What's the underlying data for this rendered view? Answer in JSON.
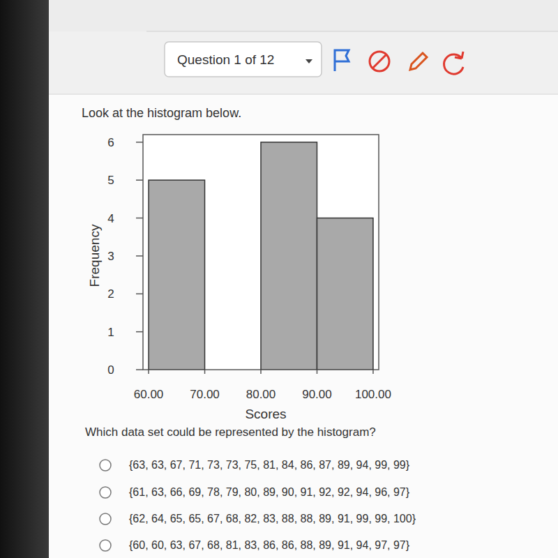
{
  "chart_data": {
    "type": "histogram",
    "bins": [
      60,
      70,
      80,
      90,
      100
    ],
    "values": [
      5,
      0,
      6,
      4
    ],
    "color": "#a9a9a9",
    "x_label": "Scores",
    "y_label": "Frequency",
    "xlim": [
      59,
      101
    ],
    "ylim": [
      0,
      6.2
    ],
    "xticks": [
      {
        "value": 60,
        "label": "60.00"
      },
      {
        "value": 70,
        "label": "70.00"
      },
      {
        "value": 80,
        "label": "80.00"
      },
      {
        "value": 90,
        "label": "90.00"
      },
      {
        "value": 100,
        "label": "100.00"
      }
    ],
    "yticks": [
      0,
      1,
      2,
      3,
      4,
      5,
      6
    ],
    "grid": false
  },
  "page": {
    "question_nav": "Question 1 of 12",
    "prompt": "Look at the histogram below.",
    "question": "Which data set could be represented by the histogram?",
    "options": [
      "{63, 63, 67, 71, 73, 73, 75, 81, 84, 86, 87, 89, 94, 99, 99}",
      "{61, 63, 66, 69, 78, 79, 80, 89, 90, 91, 92, 92, 94, 96, 97}",
      "{62, 64, 65, 65, 67, 68, 82, 83, 88, 88, 89, 91, 99, 99, 100}",
      "{60, 60, 63, 67, 68, 81, 83, 86, 86, 88, 89, 91, 94, 97, 97}"
    ]
  }
}
